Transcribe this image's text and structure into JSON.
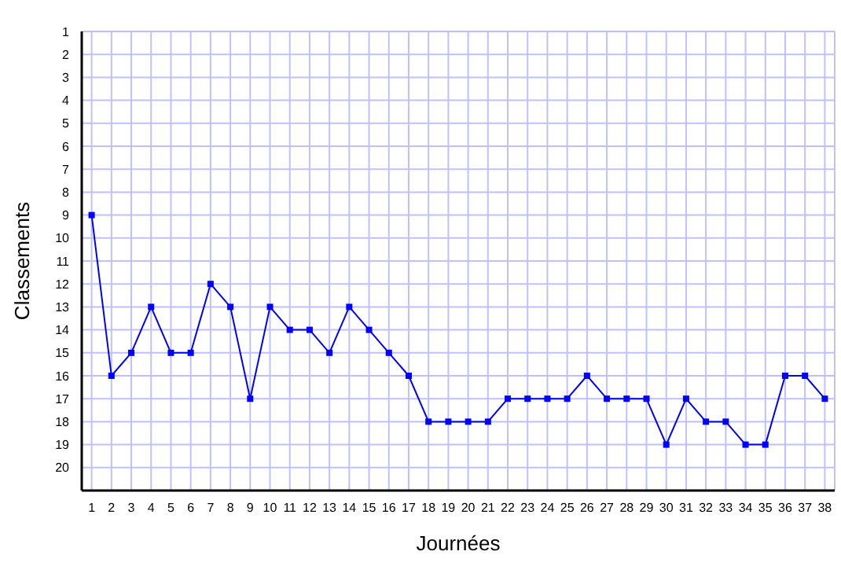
{
  "chart_data": {
    "type": "line",
    "xlabel": "Journées",
    "ylabel": "Classements",
    "x": [
      1,
      2,
      3,
      4,
      5,
      6,
      7,
      8,
      9,
      10,
      11,
      12,
      13,
      14,
      15,
      16,
      17,
      18,
      19,
      20,
      21,
      22,
      23,
      24,
      25,
      26,
      27,
      28,
      29,
      30,
      31,
      32,
      33,
      34,
      35,
      36,
      37,
      38
    ],
    "series": [
      {
        "color": "#0000ff",
        "values": [
          9,
          16,
          15,
          13,
          15,
          15,
          12,
          13,
          17,
          13,
          14,
          14,
          15,
          13,
          14,
          15,
          16,
          18,
          18,
          18,
          18,
          17,
          17,
          17,
          17,
          16,
          17,
          17,
          17,
          19,
          17,
          18,
          18,
          19,
          19,
          16,
          16,
          17
        ]
      }
    ],
    "xlim": [
      0.5,
      38.5
    ],
    "xticks": [
      1,
      2,
      3,
      4,
      5,
      6,
      7,
      8,
      9,
      10,
      11,
      12,
      13,
      14,
      15,
      16,
      17,
      18,
      19,
      20,
      21,
      22,
      23,
      24,
      25,
      26,
      27,
      28,
      29,
      30,
      31,
      32,
      33,
      34,
      35,
      36,
      37,
      38
    ],
    "ylim": [
      21,
      1
    ],
    "yticks": [
      1,
      2,
      3,
      4,
      5,
      6,
      7,
      8,
      9,
      10,
      11,
      12,
      13,
      14,
      15,
      16,
      17,
      18,
      19,
      20
    ],
    "grid": true,
    "marker": "square",
    "line_style": "solid"
  }
}
